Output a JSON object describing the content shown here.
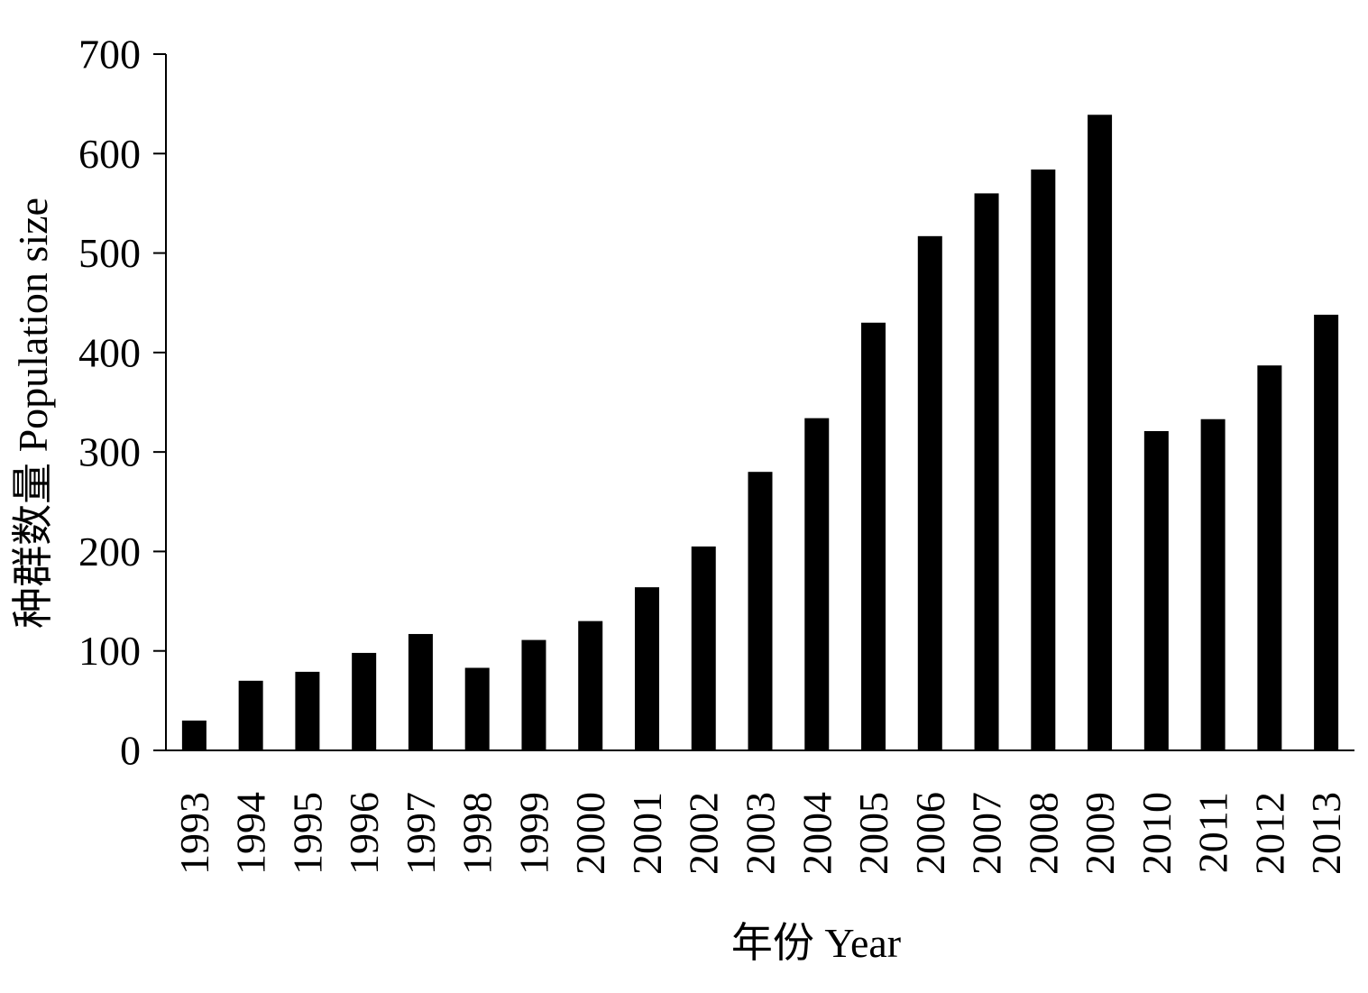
{
  "chart_data": {
    "type": "bar",
    "title": "",
    "xlabel": "年份 Year",
    "ylabel": "种群数量 Population size",
    "categories": [
      "1993",
      "1994",
      "1995",
      "1996",
      "1997",
      "1998",
      "1999",
      "2000",
      "2001",
      "2002",
      "2003",
      "2004",
      "2005",
      "2006",
      "2007",
      "2008",
      "2009",
      "2010",
      "2011",
      "2012",
      "2013"
    ],
    "values": [
      30,
      70,
      79,
      98,
      117,
      83,
      111,
      130,
      164,
      205,
      280,
      334,
      430,
      517,
      560,
      584,
      639,
      321,
      333,
      387,
      438
    ],
    "ylim": [
      0,
      700
    ],
    "yticks": [
      "0",
      "100",
      "200",
      "300",
      "400",
      "500",
      "600",
      "700"
    ],
    "bar_color": "#000000",
    "grid": false,
    "legend": "none"
  }
}
